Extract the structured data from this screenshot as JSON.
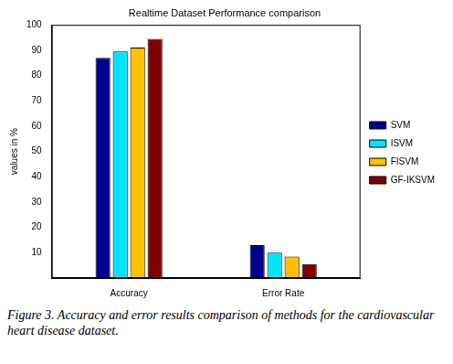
{
  "chart_data": {
    "type": "bar",
    "title": "Realtime Dataset Performance comparison",
    "y_label": "values in %",
    "caption": "Figure 3. Accuracy and error results comparison of methods for the cardiovascular heart disease dataset.",
    "categories": [
      "Accuracy",
      "Error Rate"
    ],
    "series": [
      {
        "name": "SVM",
        "color": "#00008b",
        "values": [
          87,
          13
        ]
      },
      {
        "name": "ISVM",
        "color": "#00e5ff",
        "values": [
          89.5,
          10
        ]
      },
      {
        "name": "FISVM",
        "color": "#ffc000",
        "values": [
          91,
          8.5
        ]
      },
      {
        "name": "GF-IKSVM",
        "color": "#800000",
        "values": [
          94.5,
          5.5
        ]
      }
    ],
    "ylim": [
      0,
      100
    ],
    "yticks": [
      10,
      20,
      30,
      40,
      50,
      60,
      70,
      80,
      90,
      100
    ],
    "grid": false,
    "legend": "right"
  }
}
